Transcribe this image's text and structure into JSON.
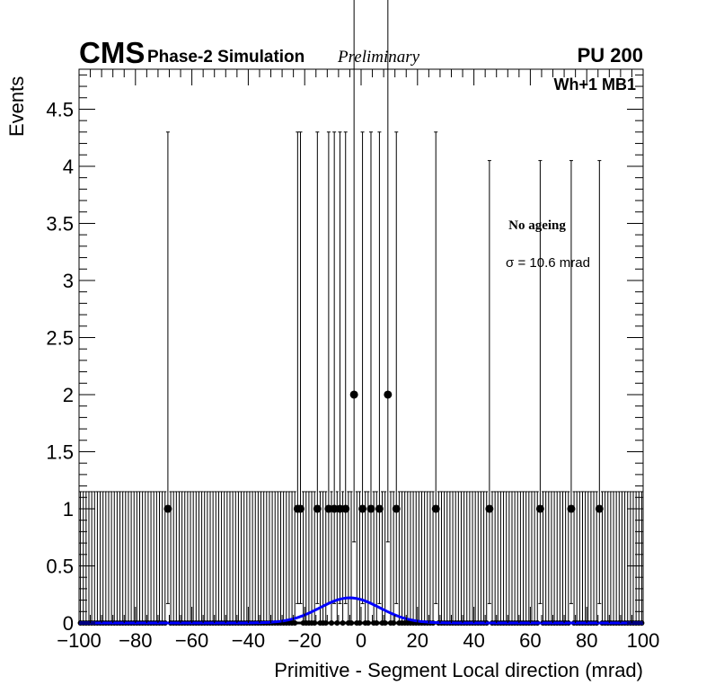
{
  "header": {
    "experiment": "CMS",
    "subtitle": "Phase-2 Simulation",
    "status": "Preliminary",
    "pileup": "PU 200"
  },
  "labels": {
    "channel": "Wh+1 MB1",
    "condition": "No ageing",
    "sigma_text": "σ = 10.6 mrad"
  },
  "chart_data": {
    "type": "scatter",
    "title": "",
    "xlabel": "Primitive - Segment Local direction (mrad)",
    "ylabel": "Events",
    "xlim": [
      -100,
      100
    ],
    "ylim": [
      0,
      4.85
    ],
    "xticks": [
      -100,
      -80,
      -60,
      -40,
      -20,
      0,
      20,
      40,
      60,
      80,
      100
    ],
    "xtick_labels": [
      "−100",
      "−80",
      "−60",
      "−40",
      "−20",
      "0",
      "20",
      "40",
      "60",
      "80",
      "100"
    ],
    "yticks": [
      0,
      0.5,
      1,
      1.5,
      2,
      2.5,
      3,
      3.5,
      4,
      4.5
    ],
    "ytick_labels": [
      "0",
      "0.5",
      "1",
      "1.5",
      "2",
      "2.5",
      "3",
      "3.5",
      "4",
      "4.5"
    ],
    "grid": false,
    "bin_width": 1,
    "colors": {
      "points": "#000000",
      "fit": "#0000ff"
    },
    "series": [
      {
        "kind": "points-with-errors",
        "points": [
          {
            "x": -69,
            "y": 1,
            "lo": 0.83,
            "hi": 3.3
          },
          {
            "x": -23,
            "y": 1,
            "lo": 0.83,
            "hi": 3.3
          },
          {
            "x": -22,
            "y": 1,
            "lo": 0.83,
            "hi": 3.3
          },
          {
            "x": -16,
            "y": 1,
            "lo": 0.83,
            "hi": 3.3
          },
          {
            "x": -12,
            "y": 1,
            "lo": 0.83,
            "hi": 3.3
          },
          {
            "x": -10,
            "y": 1,
            "lo": 0.83,
            "hi": 3.3
          },
          {
            "x": -8,
            "y": 1,
            "lo": 0.83,
            "hi": 3.3
          },
          {
            "x": -6,
            "y": 1,
            "lo": 0.83,
            "hi": 3.3
          },
          {
            "x": -3,
            "y": 2,
            "lo": 1.29,
            "hi": 4.64
          },
          {
            "x": 0,
            "y": 1,
            "lo": 0.83,
            "hi": 3.3
          },
          {
            "x": 3,
            "y": 1,
            "lo": 0.83,
            "hi": 3.3
          },
          {
            "x": 6,
            "y": 1,
            "lo": 0.83,
            "hi": 3.3
          },
          {
            "x": 9,
            "y": 2,
            "lo": 1.29,
            "hi": 4.64
          },
          {
            "x": 12,
            "y": 1,
            "lo": 0.83,
            "hi": 3.3
          },
          {
            "x": 26,
            "y": 1,
            "lo": 0.83,
            "hi": 3.3
          },
          {
            "x": 45,
            "y": 1,
            "lo": 0.83,
            "hi": 3.05
          },
          {
            "x": 63,
            "y": 1,
            "lo": 0.83,
            "hi": 3.05
          },
          {
            "x": 74,
            "y": 1,
            "lo": 0.83,
            "hi": 3.05
          },
          {
            "x": 84,
            "y": 1,
            "lo": 0.83,
            "hi": 3.05
          }
        ],
        "empty_bin_error_hi": 1.15
      },
      {
        "kind": "gaussian-fit",
        "amplitude": 0.22,
        "mean": -4,
        "sigma": 10.6
      }
    ]
  }
}
